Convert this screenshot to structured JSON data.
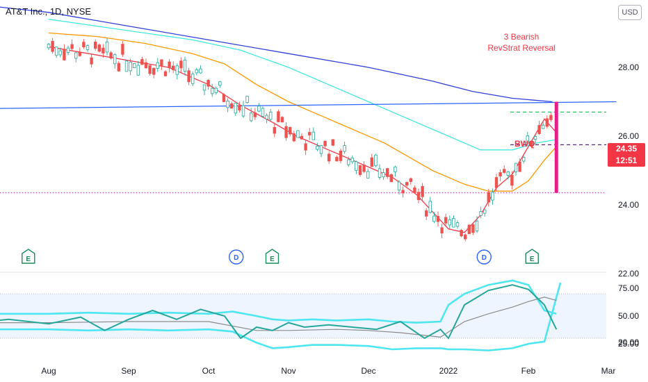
{
  "header": {
    "title": "AT&T Inc., 1D, NYSE",
    "currency_button": "USD"
  },
  "price_badge": {
    "price": "24.35",
    "countdown": "12:51",
    "color": "#f23645"
  },
  "annotations": {
    "reversal_line1": "3 Bearish",
    "reversal_line2": "RevStrat Reversal",
    "bwq": "BWQ"
  },
  "event_markers": [
    {
      "letter": "E",
      "type": "earnings",
      "month_index": 0.05
    },
    {
      "letter": "D",
      "type": "dividend",
      "month_index": 2.65
    },
    {
      "letter": "E",
      "type": "earnings",
      "month_index": 3.1
    },
    {
      "letter": "D",
      "type": "dividend",
      "month_index": 5.75
    },
    {
      "letter": "E",
      "type": "earnings",
      "month_index": 6.35
    }
  ],
  "colors": {
    "ema_red": "#f23645",
    "ema_orange": "#ff9800",
    "ema_cyan": "#42e8e0",
    "ema_blue": "#2f3fdd",
    "trendline": "#2962ff",
    "bull": "#26a69a",
    "bear": "#ef5350",
    "band": "#4ee6f0",
    "dashed_green": "#22c55e",
    "dashed_purple": "#5b2a86",
    "magenta": "#e91e8c",
    "marker_green": "#1b8a5a",
    "marker_blue": "#2962ff"
  },
  "chart_data": [
    {
      "type": "line",
      "pane": "price",
      "title": "AT&T Inc., 1D, NYSE",
      "y_ticks": [
        "28.00",
        "26.00",
        "24.00",
        "22.00",
        "20.00"
      ],
      "ylim": [
        19.5,
        30.3
      ],
      "x_ticks": [
        "Aug",
        "Sep",
        "Oct",
        "Nov",
        "Dec",
        "2022",
        "Feb",
        "Mar"
      ],
      "series": [
        {
          "color": "#f23645",
          "x": [
            0,
            0.5,
            1,
            1.5,
            2,
            2.4,
            2.8,
            3.1,
            3.5,
            4,
            4.3,
            4.6,
            5,
            5.2,
            5.4,
            5.6,
            5.8,
            6,
            6.2,
            6.35
          ],
          "y": [
            28.6,
            28.4,
            28.2,
            28.0,
            27.5,
            26.9,
            26.4,
            26.0,
            25.6,
            25.1,
            24.8,
            24.3,
            23.3,
            23.2,
            23.7,
            24.5,
            24.9,
            25.7,
            26.5,
            26.1
          ]
        },
        {
          "color": "#ff9800",
          "x": [
            0,
            0.6,
            1.2,
            1.8,
            2.2,
            2.6,
            3,
            3.4,
            3.8,
            4.2,
            4.5,
            4.8,
            5.2,
            5.5,
            5.8,
            6,
            6.2,
            6.35
          ],
          "y": [
            29.0,
            28.9,
            28.7,
            28.4,
            28.1,
            27.5,
            27.0,
            26.6,
            26.2,
            25.8,
            25.4,
            25.0,
            24.6,
            24.4,
            24.4,
            24.7,
            25.3,
            25.7
          ]
        },
        {
          "color": "#42e8e0",
          "x": [
            0,
            0.6,
            1.2,
            1.8,
            2.4,
            3,
            3.5,
            4,
            4.5,
            5,
            5.4,
            5.8,
            6.1,
            6.35
          ],
          "y": [
            29.4,
            29.2,
            29.0,
            28.8,
            28.5,
            28.0,
            27.5,
            27.0,
            26.5,
            26.0,
            25.6,
            25.6,
            25.8,
            25.9
          ]
        },
        {
          "color": "#2f3fdd",
          "x": [
            -0.8,
            0,
            1,
            2,
            3,
            4,
            4.8,
            5.3,
            5.8,
            6.3
          ],
          "y": [
            29.8,
            29.6,
            29.2,
            28.8,
            28.4,
            28.0,
            27.6,
            27.3,
            27.1,
            27.0
          ]
        },
        {
          "color": "#2962ff",
          "x": [
            -0.8,
            7.1
          ],
          "y": [
            26.8,
            27.0
          ]
        }
      ],
      "levels": [
        {
          "value": 26.7,
          "color": "#22c55e",
          "style": "dashed"
        },
        {
          "value": 25.75,
          "color": "#5b2a86",
          "style": "dashed"
        },
        {
          "value": 24.35,
          "color": "#e91e8c",
          "style": "dotted"
        }
      ]
    },
    {
      "type": "line",
      "pane": "oscillator",
      "y_ticks": [
        "75.00",
        "50.00",
        "25.00"
      ],
      "ylim": [
        15,
        95
      ],
      "highlight_band": [
        30,
        70
      ],
      "series": [
        {
          "color": "#4ee6f0",
          "x": [
            -0.8,
            0,
            0.5,
            1,
            1.5,
            2,
            2.3,
            2.6,
            2.8,
            3,
            3.3,
            3.6,
            4,
            4.3,
            4.6,
            4.9,
            5,
            5.2,
            5.5,
            5.8,
            6,
            6.2,
            6.4
          ],
          "y": [
            38,
            38,
            37,
            38,
            37,
            38,
            36,
            26,
            21,
            22,
            24,
            24,
            23,
            20,
            21,
            21,
            20,
            20,
            19,
            21,
            25,
            27,
            80
          ]
        },
        {
          "color": "#4ee6f0",
          "x": [
            -0.8,
            0,
            0.5,
            1,
            1.5,
            2,
            2.3,
            2.6,
            2.8,
            3,
            3.3,
            3.6,
            4,
            4.3,
            4.6,
            4.9,
            5,
            5.2,
            5.5,
            5.8,
            6,
            6.2,
            6.35
          ],
          "y": [
            52,
            52,
            53,
            52,
            53,
            52,
            54,
            50,
            47,
            46,
            47,
            46,
            47,
            45,
            44,
            45,
            60,
            70,
            78,
            82,
            78,
            55,
            52
          ]
        },
        {
          "color": "#8a8a8a",
          "x": [
            -0.8,
            0,
            1,
            2,
            2.6,
            3,
            3.6,
            4,
            4.4,
            4.9,
            5.2,
            5.5,
            5.8,
            6,
            6.2,
            6.35
          ],
          "y": [
            44,
            44,
            45,
            45,
            37,
            37,
            38,
            37,
            35,
            31,
            45,
            52,
            58,
            63,
            67,
            64
          ]
        },
        {
          "color": "#26a69a",
          "x": [
            -0.8,
            -0.5,
            0,
            0.4,
            0.7,
            1,
            1.3,
            1.6,
            1.9,
            2.2,
            2.4,
            2.6,
            2.8,
            3,
            3.2,
            3.5,
            3.8,
            4.1,
            4.4,
            4.7,
            4.9,
            5,
            5.2,
            5.5,
            5.8,
            6,
            6.2,
            6.35
          ],
          "y": [
            45,
            47,
            43,
            49,
            37,
            47,
            55,
            47,
            56,
            50,
            30,
            40,
            37,
            44,
            40,
            42,
            40,
            38,
            45,
            30,
            38,
            30,
            60,
            73,
            78,
            74,
            60,
            38
          ]
        }
      ]
    }
  ]
}
